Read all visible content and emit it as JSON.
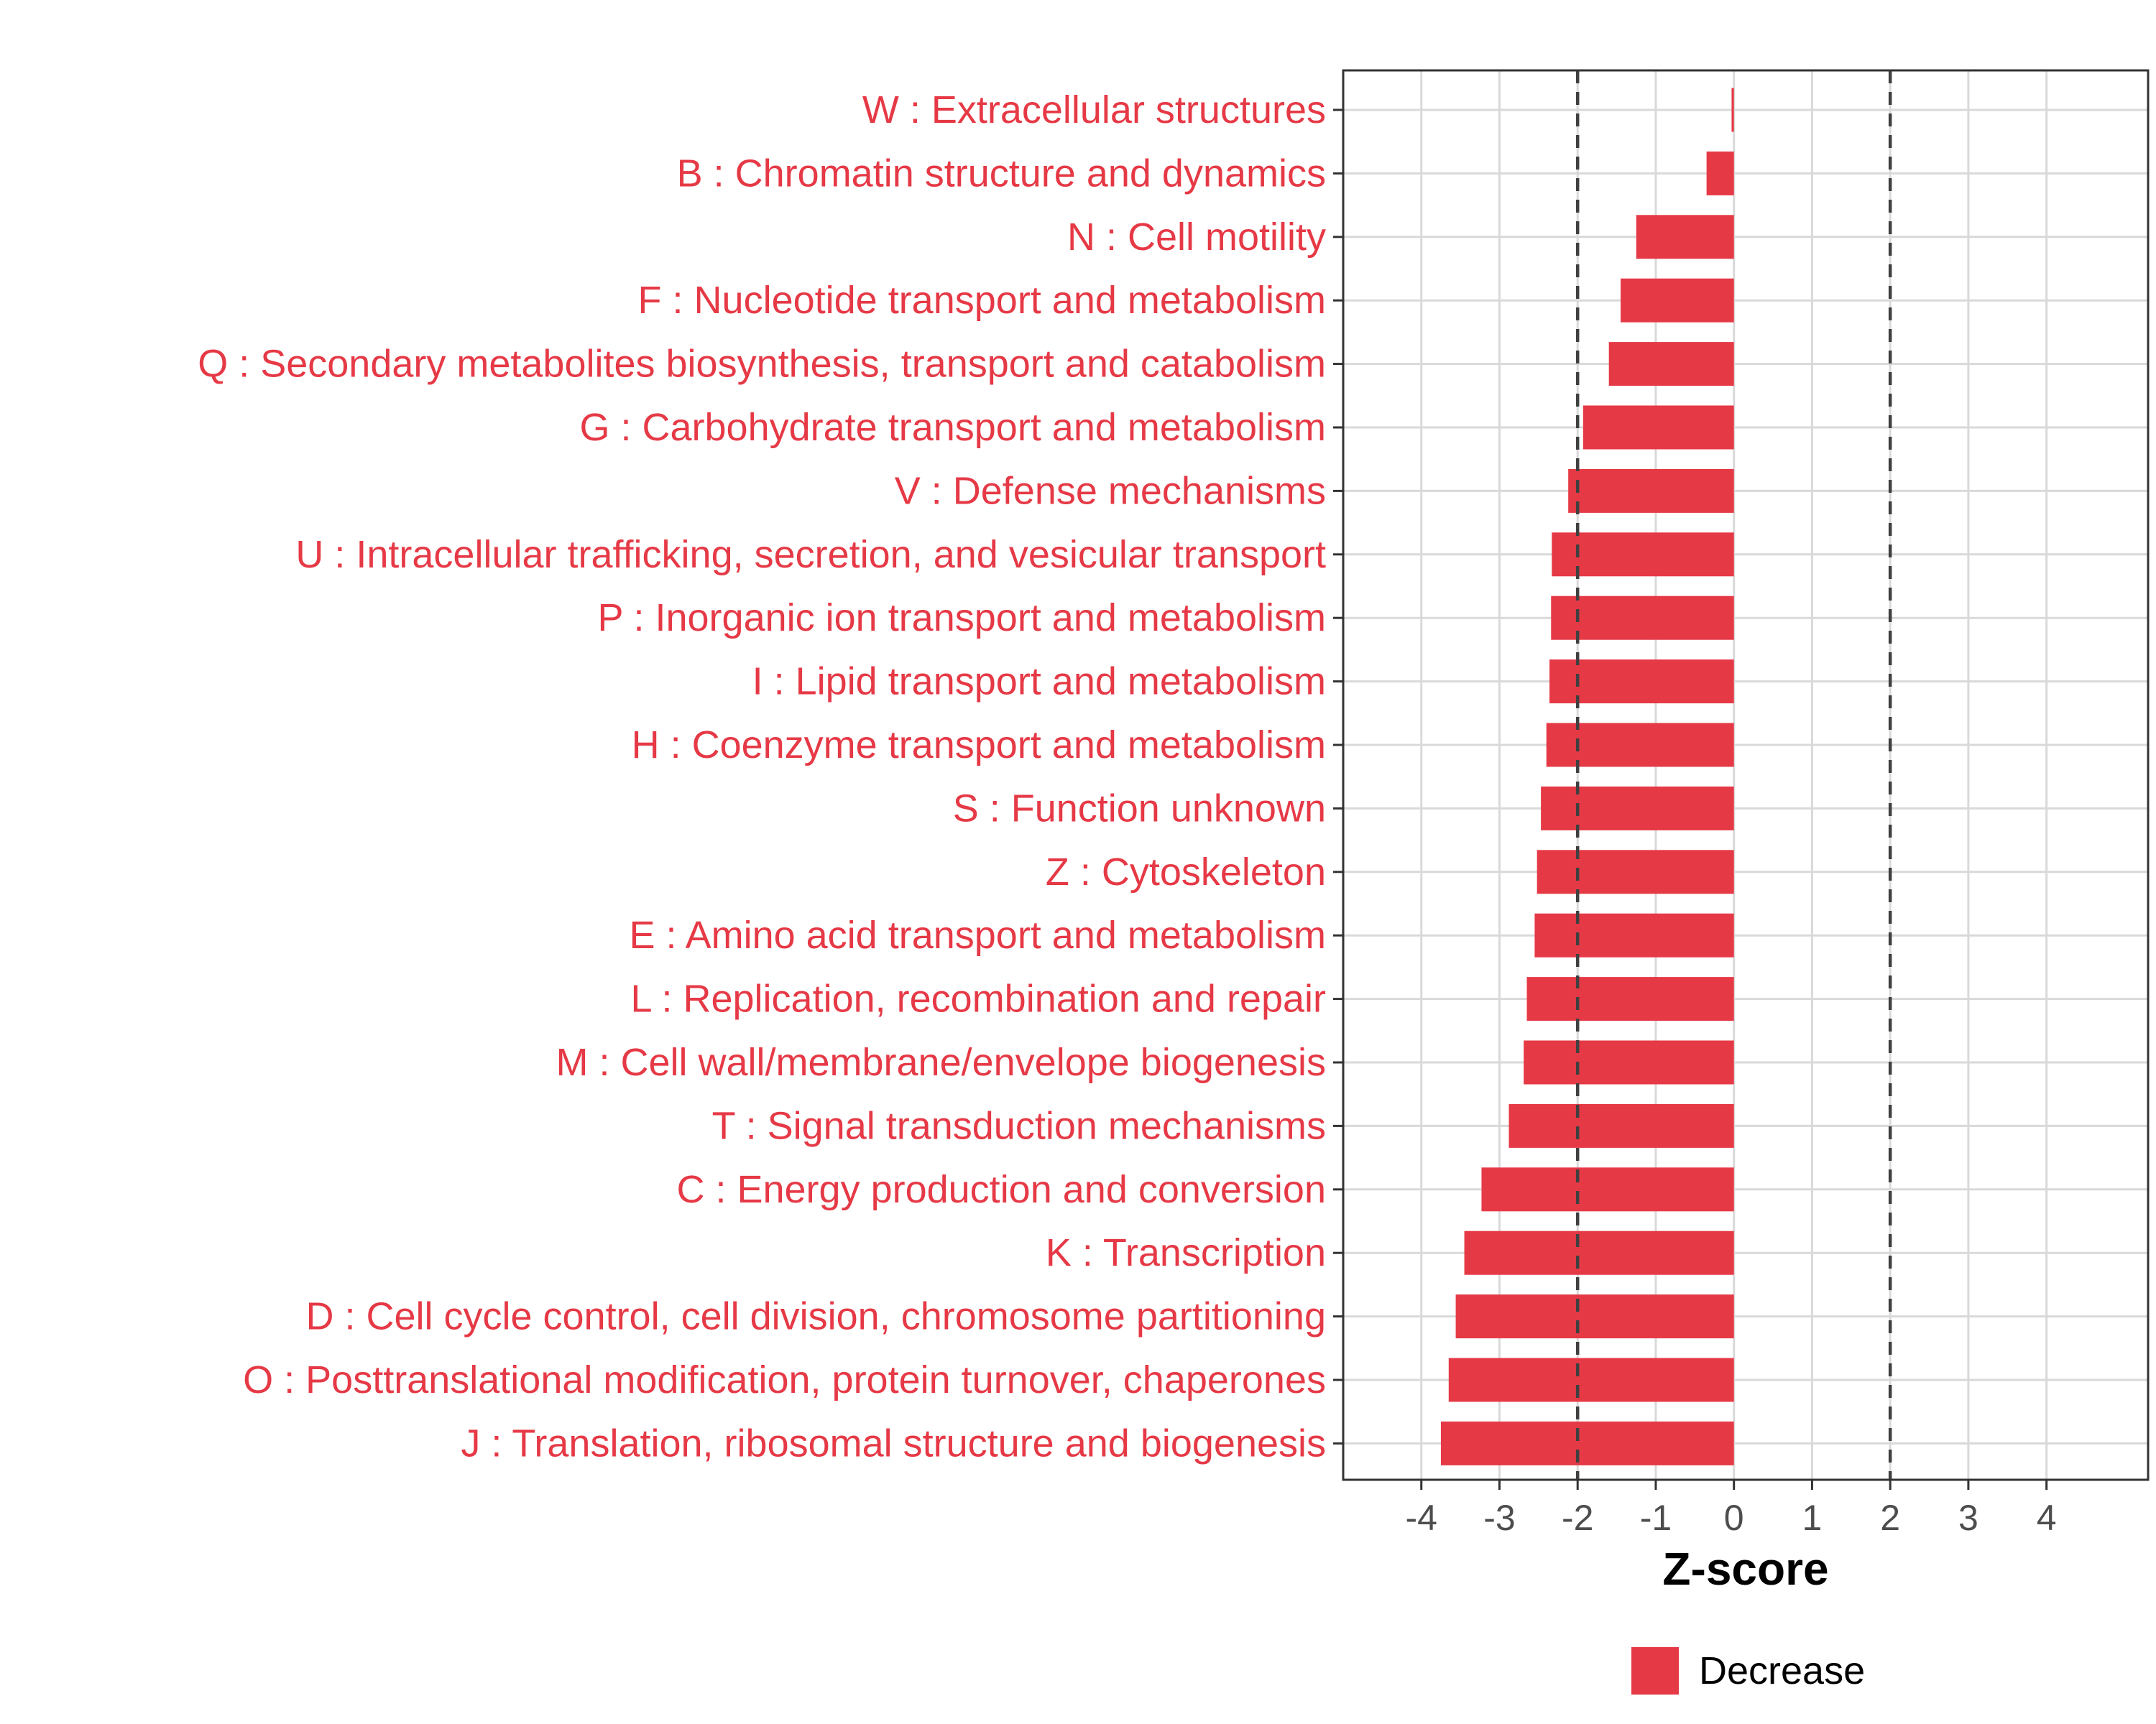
{
  "chart_data": {
    "type": "bar",
    "orientation": "horizontal",
    "title": "",
    "xlabel": "Z-score",
    "ylabel": "",
    "xlim": [
      -5,
      5.3
    ],
    "xticks": [
      -4,
      -3,
      -2,
      -1,
      0,
      1,
      2,
      3,
      4
    ],
    "xtick_labels": [
      "-4",
      "-3",
      "-2",
      "-1",
      "0",
      "1",
      "2",
      "3",
      "4"
    ],
    "reference_lines": [
      -2,
      2
    ],
    "grid": true,
    "bar_color": "#E63946",
    "label_color": "#E63946",
    "categories": [
      "W : Extracellular structures",
      "B : Chromatin structure and dynamics",
      "N : Cell motility",
      "F : Nucleotide transport and metabolism",
      "Q : Secondary metabolites biosynthesis, transport and catabolism",
      "G : Carbohydrate transport and metabolism",
      "V : Defense mechanisms",
      "U : Intracellular trafficking, secretion, and vesicular transport",
      "P : Inorganic ion transport and metabolism",
      "I : Lipid transport and metabolism",
      "H : Coenzyme transport and metabolism",
      "S : Function unknown",
      "Z : Cytoskeleton",
      "E : Amino acid transport and metabolism",
      "L : Replication, recombination and repair",
      "M : Cell wall/membrane/envelope biogenesis",
      "T : Signal transduction mechanisms",
      "C : Energy production and conversion",
      "K : Transcription",
      "D : Cell cycle control, cell division, chromosome partitioning",
      "O : Posttranslational modification, protein turnover, chaperones",
      "J : Translation, ribosomal structure and biogenesis"
    ],
    "values": [
      -0.03,
      -0.35,
      -1.25,
      -1.45,
      -1.6,
      -1.93,
      -2.12,
      -2.33,
      -2.34,
      -2.36,
      -2.4,
      -2.47,
      -2.52,
      -2.55,
      -2.65,
      -2.69,
      -2.88,
      -3.23,
      -3.45,
      -3.56,
      -3.65,
      -3.75
    ],
    "legend": {
      "position": "bottom",
      "entries": [
        {
          "label": "Decrease",
          "color": "#E63946"
        }
      ]
    }
  }
}
